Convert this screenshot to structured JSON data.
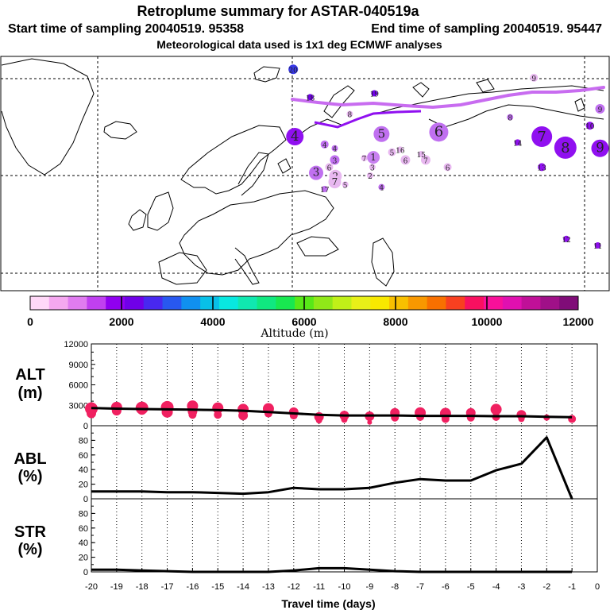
{
  "header": {
    "title": "Retroplume summary for ASTAR-040519a",
    "start_label": "Start time of sampling 20040519. 95358",
    "end_label": "End time of sampling 20040519. 95447",
    "met_label": "Meteorological data used is 1x1 deg ECMWF analyses"
  },
  "colorbar": {
    "title": "Altitude (m)",
    "ticks": [
      "0",
      "2000",
      "4000",
      "6000",
      "8000",
      "10000",
      "12000"
    ],
    "colors": [
      "#ffd8f8",
      "#f5a8f0",
      "#e07cf0",
      "#c040f0",
      "#9000f0",
      "#7000e8",
      "#4828f0",
      "#2858f0",
      "#1090f0",
      "#08c0e8",
      "#08e8e0",
      "#10e8b0",
      "#10e880",
      "#18e850",
      "#58e818",
      "#90e818",
      "#c0f018",
      "#e8f018",
      "#f8e800",
      "#f8c000",
      "#f89800",
      "#f87000",
      "#f84020",
      "#f81060",
      "#f8109a",
      "#e010b0",
      "#c01098",
      "#a01088",
      "#800c78"
    ]
  },
  "map_clusters": [
    {
      "id": "1",
      "lon": 51.9,
      "lat": 60.6,
      "size": 8,
      "color": "#c880f0"
    },
    {
      "id": "2",
      "lon": 40.3,
      "lat": 57.7,
      "size": 8,
      "color": "#e8b8f0"
    },
    {
      "id": "2",
      "lon": 50.9,
      "lat": 57.8,
      "size": 4,
      "color": "#e8b8f0"
    },
    {
      "id": "3",
      "lon": 34.4,
      "lat": 58.2,
      "size": 9,
      "color": "#c070f0"
    },
    {
      "id": "3",
      "lon": 51.6,
      "lat": 59.1,
      "size": 4,
      "color": "#e8b8f0"
    },
    {
      "id": "3",
      "lon": 40.1,
      "lat": 60.2,
      "size": 6,
      "color": "#c070f0"
    },
    {
      "id": "4",
      "lon": 27.9,
      "lat": 63.8,
      "size": 11,
      "color": "#9010f0"
    },
    {
      "id": "4",
      "lon": 37.0,
      "lat": 62.6,
      "size": 5,
      "color": "#c070f0"
    },
    {
      "id": "4",
      "lon": 40.1,
      "lat": 62.0,
      "size": 4,
      "color": "#c070f0"
    },
    {
      "id": "4",
      "lon": 54.4,
      "lat": 56.0,
      "size": 4,
      "color": "#c070f0"
    },
    {
      "id": "5",
      "lon": 54.4,
      "lat": 64.2,
      "size": 10,
      "color": "#c070f0"
    },
    {
      "id": "5",
      "lon": 57.6,
      "lat": 61.4,
      "size": 5,
      "color": "#e8b8f0"
    },
    {
      "id": "5",
      "lon": 43.3,
      "lat": 56.4,
      "size": 4,
      "color": "#e8b8f0"
    },
    {
      "id": "6",
      "lon": 71.9,
      "lat": 64.5,
      "size": 12,
      "color": "#c070f0"
    },
    {
      "id": "6",
      "lon": 61.7,
      "lat": 60.2,
      "size": 6,
      "color": "#e8b8f0"
    },
    {
      "id": "6",
      "lon": 74.6,
      "lat": 59.1,
      "size": 5,
      "color": "#e8b8f0"
    },
    {
      "id": "6",
      "lon": 38.4,
      "lat": 59.1,
      "size": 5,
      "color": "#e8b8f0"
    },
    {
      "id": "7",
      "lon": 103.4,
      "lat": 63.8,
      "size": 13,
      "color": "#9010f0"
    },
    {
      "id": "7",
      "lon": 67.9,
      "lat": 60.2,
      "size": 6,
      "color": "#e8b8f0"
    },
    {
      "id": "7",
      "lon": 49.1,
      "lat": 60.5,
      "size": 4,
      "color": "#e8b8f0"
    },
    {
      "id": "7",
      "lon": 40.1,
      "lat": 56.8,
      "size": 8,
      "color": "#e8b8f0"
    },
    {
      "id": "8",
      "lon": 110.6,
      "lat": 62.1,
      "size": 14,
      "color": "#9010f0"
    },
    {
      "id": "8",
      "lon": 93.7,
      "lat": 66.8,
      "size": 4,
      "color": "#c070f0"
    },
    {
      "id": "8",
      "lon": 44.7,
      "lat": 67.3,
      "size": 4,
      "color": "#e8b8f0"
    },
    {
      "id": "9",
      "lon": 121.2,
      "lat": 62.0,
      "size": 11,
      "color": "#9010f0"
    },
    {
      "id": "9",
      "lon": 101.0,
      "lat": 72.9,
      "size": 5,
      "color": "#e8b8f0"
    },
    {
      "id": "9",
      "lon": 121.2,
      "lat": 68.1,
      "size": 6,
      "color": "#c070f0"
    },
    {
      "id": "10",
      "lon": 118.1,
      "lat": 65.5,
      "size": 5,
      "color": "#9010f0"
    },
    {
      "id": "11",
      "lon": 120.5,
      "lat": 47.0,
      "size": 4,
      "color": "#9010f0"
    },
    {
      "id": "12",
      "lon": 110.9,
      "lat": 48.0,
      "size": 4,
      "color": "#9010f0"
    },
    {
      "id": "13",
      "lon": 103.4,
      "lat": 59.1,
      "size": 5,
      "color": "#9010f0"
    },
    {
      "id": "14",
      "lon": 96.0,
      "lat": 62.9,
      "size": 4,
      "color": "#9010f0"
    },
    {
      "id": "15",
      "lon": 66.5,
      "lat": 61.1,
      "size": 4,
      "color": "#e8b8f0"
    },
    {
      "id": "16",
      "lon": 60.1,
      "lat": 61.8,
      "size": 4,
      "color": "#e8b8f0"
    },
    {
      "id": "17",
      "lon": 37.0,
      "lat": 55.7,
      "size": 4,
      "color": "#c070f0"
    },
    {
      "id": "18",
      "lon": 32.6,
      "lat": 69.9,
      "size": 4,
      "color": "#7000e8"
    },
    {
      "id": "19",
      "lon": 52.2,
      "lat": 70.5,
      "size": 4,
      "color": "#7000e8"
    },
    {
      "id": "20",
      "lon": 27.4,
      "lat": 74.2,
      "size": 6,
      "color": "#3838e8"
    }
  ],
  "chart_data": [
    {
      "type": "line",
      "panel": "ALT",
      "ylabel_line1": "ALT",
      "ylabel_line2": "(m)",
      "ylim": [
        0,
        12000
      ],
      "yticks": [
        "12000",
        "9000",
        "6000",
        "3000",
        "0"
      ],
      "x": [
        -20,
        -19,
        -18,
        -17,
        -16,
        -15,
        -14,
        -13,
        -12,
        -11,
        -10,
        -9,
        -8,
        -7,
        -6,
        -5,
        -4,
        -3,
        -2,
        -1
      ],
      "series": [
        {
          "name": "mean altitude",
          "values": [
            2600,
            2500,
            2450,
            2400,
            2350,
            2300,
            2200,
            2000,
            1800,
            1600,
            1500,
            1500,
            1500,
            1450,
            1450,
            1450,
            1400,
            1400,
            1300,
            1250
          ]
        }
      ],
      "scatter_x": [
        -20,
        -20,
        -19,
        -19,
        -18,
        -18,
        -17,
        -17,
        -16,
        -16,
        -16,
        -15,
        -15,
        -14,
        -14,
        -13,
        -13,
        -12,
        -12,
        -11,
        -11,
        -10,
        -10,
        -9,
        -9,
        -8,
        -8,
        -7,
        -7,
        -6,
        -6,
        -5,
        -5,
        -4,
        -4,
        -3,
        -3,
        -2,
        -1
      ],
      "scatter_y": [
        2500,
        1800,
        2700,
        2200,
        2600,
        2300,
        2700,
        2000,
        2900,
        2100,
        1600,
        2600,
        1600,
        2400,
        1500,
        2500,
        1800,
        2000,
        1500,
        1300,
        800,
        1500,
        900,
        1400,
        500,
        1900,
        1200,
        1900,
        1300,
        1800,
        1000,
        1900,
        1200,
        2400,
        1300,
        1600,
        1000,
        1200,
        1000
      ],
      "scatter_size": [
        8,
        6,
        7,
        6,
        8,
        6,
        8,
        7,
        7,
        6,
        5,
        7,
        5,
        7,
        6,
        7,
        5,
        6,
        5,
        6,
        4,
        6,
        4,
        6,
        3,
        6,
        5,
        7,
        5,
        7,
        5,
        6,
        5,
        7,
        5,
        6,
        4,
        4,
        5
      ]
    },
    {
      "type": "line",
      "panel": "ABL",
      "ylabel_line1": "ABL",
      "ylabel_line2": "(%)",
      "ylim": [
        0,
        100
      ],
      "yticks": [
        "80",
        "60",
        "40",
        "20",
        "0"
      ],
      "x": [
        -20,
        -19,
        -18,
        -17,
        -16,
        -15,
        -14,
        -13,
        -12,
        -11,
        -10,
        -9,
        -8,
        -7,
        -6,
        -5,
        -4,
        -3,
        -2,
        -1
      ],
      "series": [
        {
          "name": "ABL fraction",
          "values": [
            10,
            10,
            10,
            9,
            9,
            8,
            7,
            9,
            15,
            13,
            13,
            15,
            22,
            27,
            25,
            25,
            39,
            48,
            84,
            0
          ]
        }
      ]
    },
    {
      "type": "line",
      "panel": "STR",
      "ylabel_line1": "STR",
      "ylabel_line2": "(%)",
      "ylim": [
        0,
        100
      ],
      "yticks": [
        "80",
        "60",
        "40",
        "20",
        "0"
      ],
      "xlabel": "Travel time (days)",
      "xticks": [
        "-20",
        "-19",
        "-18",
        "-17",
        "-16",
        "-15",
        "-14",
        "-13",
        "-12",
        "-11",
        "-10",
        "-9",
        "-8",
        "-7",
        "-6",
        "-5",
        "-4",
        "-3",
        "-2",
        "-1",
        "0"
      ],
      "x": [
        -20,
        -19,
        -18,
        -17,
        -16,
        -15,
        -14,
        -13,
        -12,
        -11,
        -10,
        -9,
        -8,
        -7,
        -6,
        -5,
        -4,
        -3,
        -2,
        -1
      ],
      "series": [
        {
          "name": "stratospheric fraction",
          "values": [
            3,
            3,
            2,
            1,
            0,
            0,
            0,
            0,
            2,
            5,
            5,
            3,
            1,
            0,
            0,
            0,
            0,
            0,
            0,
            0
          ]
        }
      ]
    }
  ]
}
